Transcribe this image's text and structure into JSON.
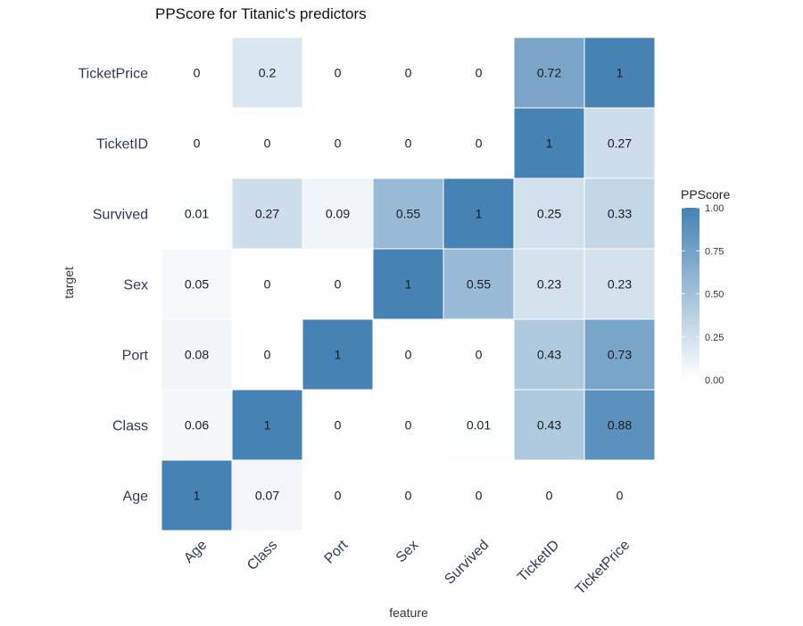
{
  "chart_data": {
    "type": "heatmap",
    "title": "PPScore for Titanic's predictors",
    "xlabel": "feature",
    "ylabel": "target",
    "x_categories": [
      "Age",
      "Class",
      "Port",
      "Sex",
      "Survived",
      "TicketID",
      "TicketPrice"
    ],
    "y_categories": [
      "TicketPrice",
      "TicketID",
      "Survived",
      "Sex",
      "Port",
      "Class",
      "Age"
    ],
    "values": [
      [
        0,
        0.2,
        0,
        0,
        0,
        0.72,
        1
      ],
      [
        0,
        0,
        0,
        0,
        0,
        1,
        0.27
      ],
      [
        0.01,
        0.27,
        0.09,
        0.55,
        1,
        0.25,
        0.33
      ],
      [
        0.05,
        0,
        0,
        1,
        0.55,
        0.23,
        0.23
      ],
      [
        0.08,
        0,
        1,
        0,
        0,
        0.43,
        0.73
      ],
      [
        0.06,
        1,
        0,
        0,
        0.01,
        0.43,
        0.88
      ],
      [
        1,
        0.07,
        0,
        0,
        0,
        0,
        0
      ]
    ],
    "colorbar": {
      "title": "PPScore",
      "range": [
        0,
        1
      ],
      "ticks": [
        "0.00",
        "0.25",
        "0.50",
        "0.75",
        "1.00"
      ],
      "color_low": "#ffffff",
      "color_high": "#4682b4"
    },
    "grid": false
  }
}
